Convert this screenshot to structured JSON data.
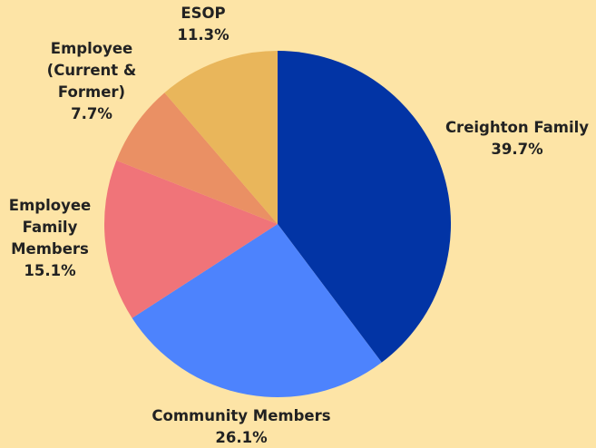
{
  "chart_data": {
    "type": "pie",
    "title": "",
    "slices": [
      {
        "label": "Creighton Family",
        "label_lines": [
          "Creighton Family"
        ],
        "value": 39.7,
        "value_text": "39.7%",
        "color": "#0234a5"
      },
      {
        "label": "Community Members",
        "label_lines": [
          "Community Members"
        ],
        "value": 26.1,
        "value_text": "26.1%",
        "color": "#4d83fd"
      },
      {
        "label": "Employee Family Members",
        "label_lines": [
          "Employee",
          "Family",
          "Members"
        ],
        "value": 15.1,
        "value_text": "15.1%",
        "color": "#f07479"
      },
      {
        "label": "Employee (Current & Former)",
        "label_lines": [
          "Employee",
          "(Current &",
          "Former)"
        ],
        "value": 7.7,
        "value_text": "7.7%",
        "color": "#ea9064"
      },
      {
        "label": "ESOP",
        "label_lines": [
          "ESOP"
        ],
        "value": 11.3,
        "value_text": "11.3%",
        "color": "#e9b65b"
      }
    ],
    "start_angle_deg": 0,
    "direction": "clockwise",
    "legend": "none"
  }
}
